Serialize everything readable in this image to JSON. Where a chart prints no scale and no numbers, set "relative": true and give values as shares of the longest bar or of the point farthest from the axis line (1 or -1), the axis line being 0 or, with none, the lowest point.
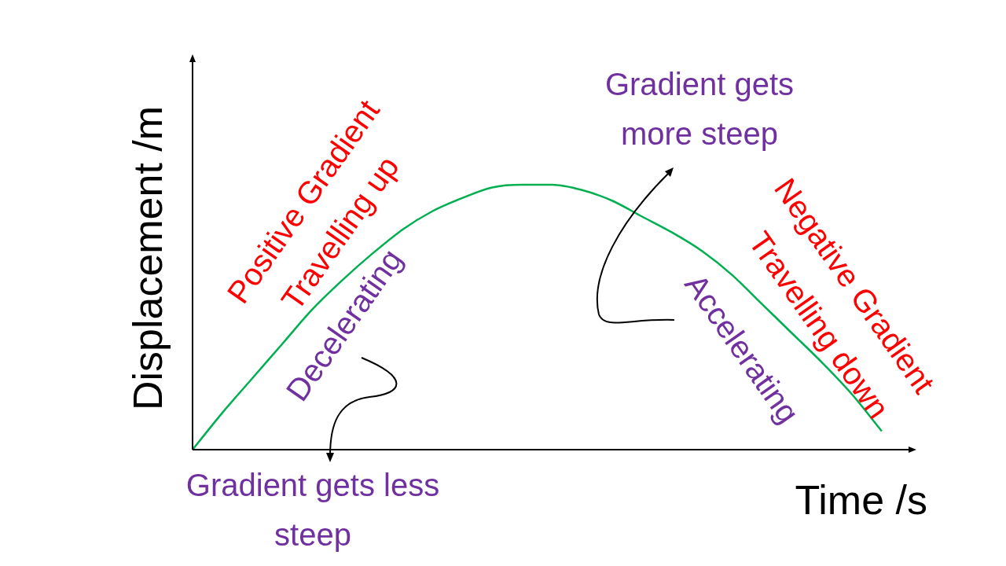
{
  "chart_data": {
    "type": "line",
    "relative": true,
    "xlabel": "Time /s",
    "ylabel": "Displacement /m",
    "marker": "none",
    "categories": [
      null,
      null,
      null,
      null,
      null,
      null,
      null,
      null,
      null,
      null,
      null,
      null,
      null,
      null,
      null,
      null,
      null,
      null,
      null,
      null,
      null,
      null,
      null,
      null,
      null
    ],
    "series": [
      {
        "color": "#00b050",
        "values": [
          0,
          0.14,
          0.27,
          0.4,
          0.53,
          0.64,
          0.74,
          0.83,
          0.9,
          0.95,
          0.99,
          1,
          1,
          0.98,
          0.94,
          0.88,
          0.82,
          0.75,
          0.66,
          0.55,
          0.44,
          0.33,
          0.21,
          0.07,
          null
        ]
      }
    ],
    "annotations": [
      "Positive Gradient",
      "Travelling up",
      "Decelerating",
      "Gradient gets less steep",
      "Gradient gets more steep",
      "Accelerating",
      "Negative Gradient",
      "Travelling down"
    ]
  }
}
